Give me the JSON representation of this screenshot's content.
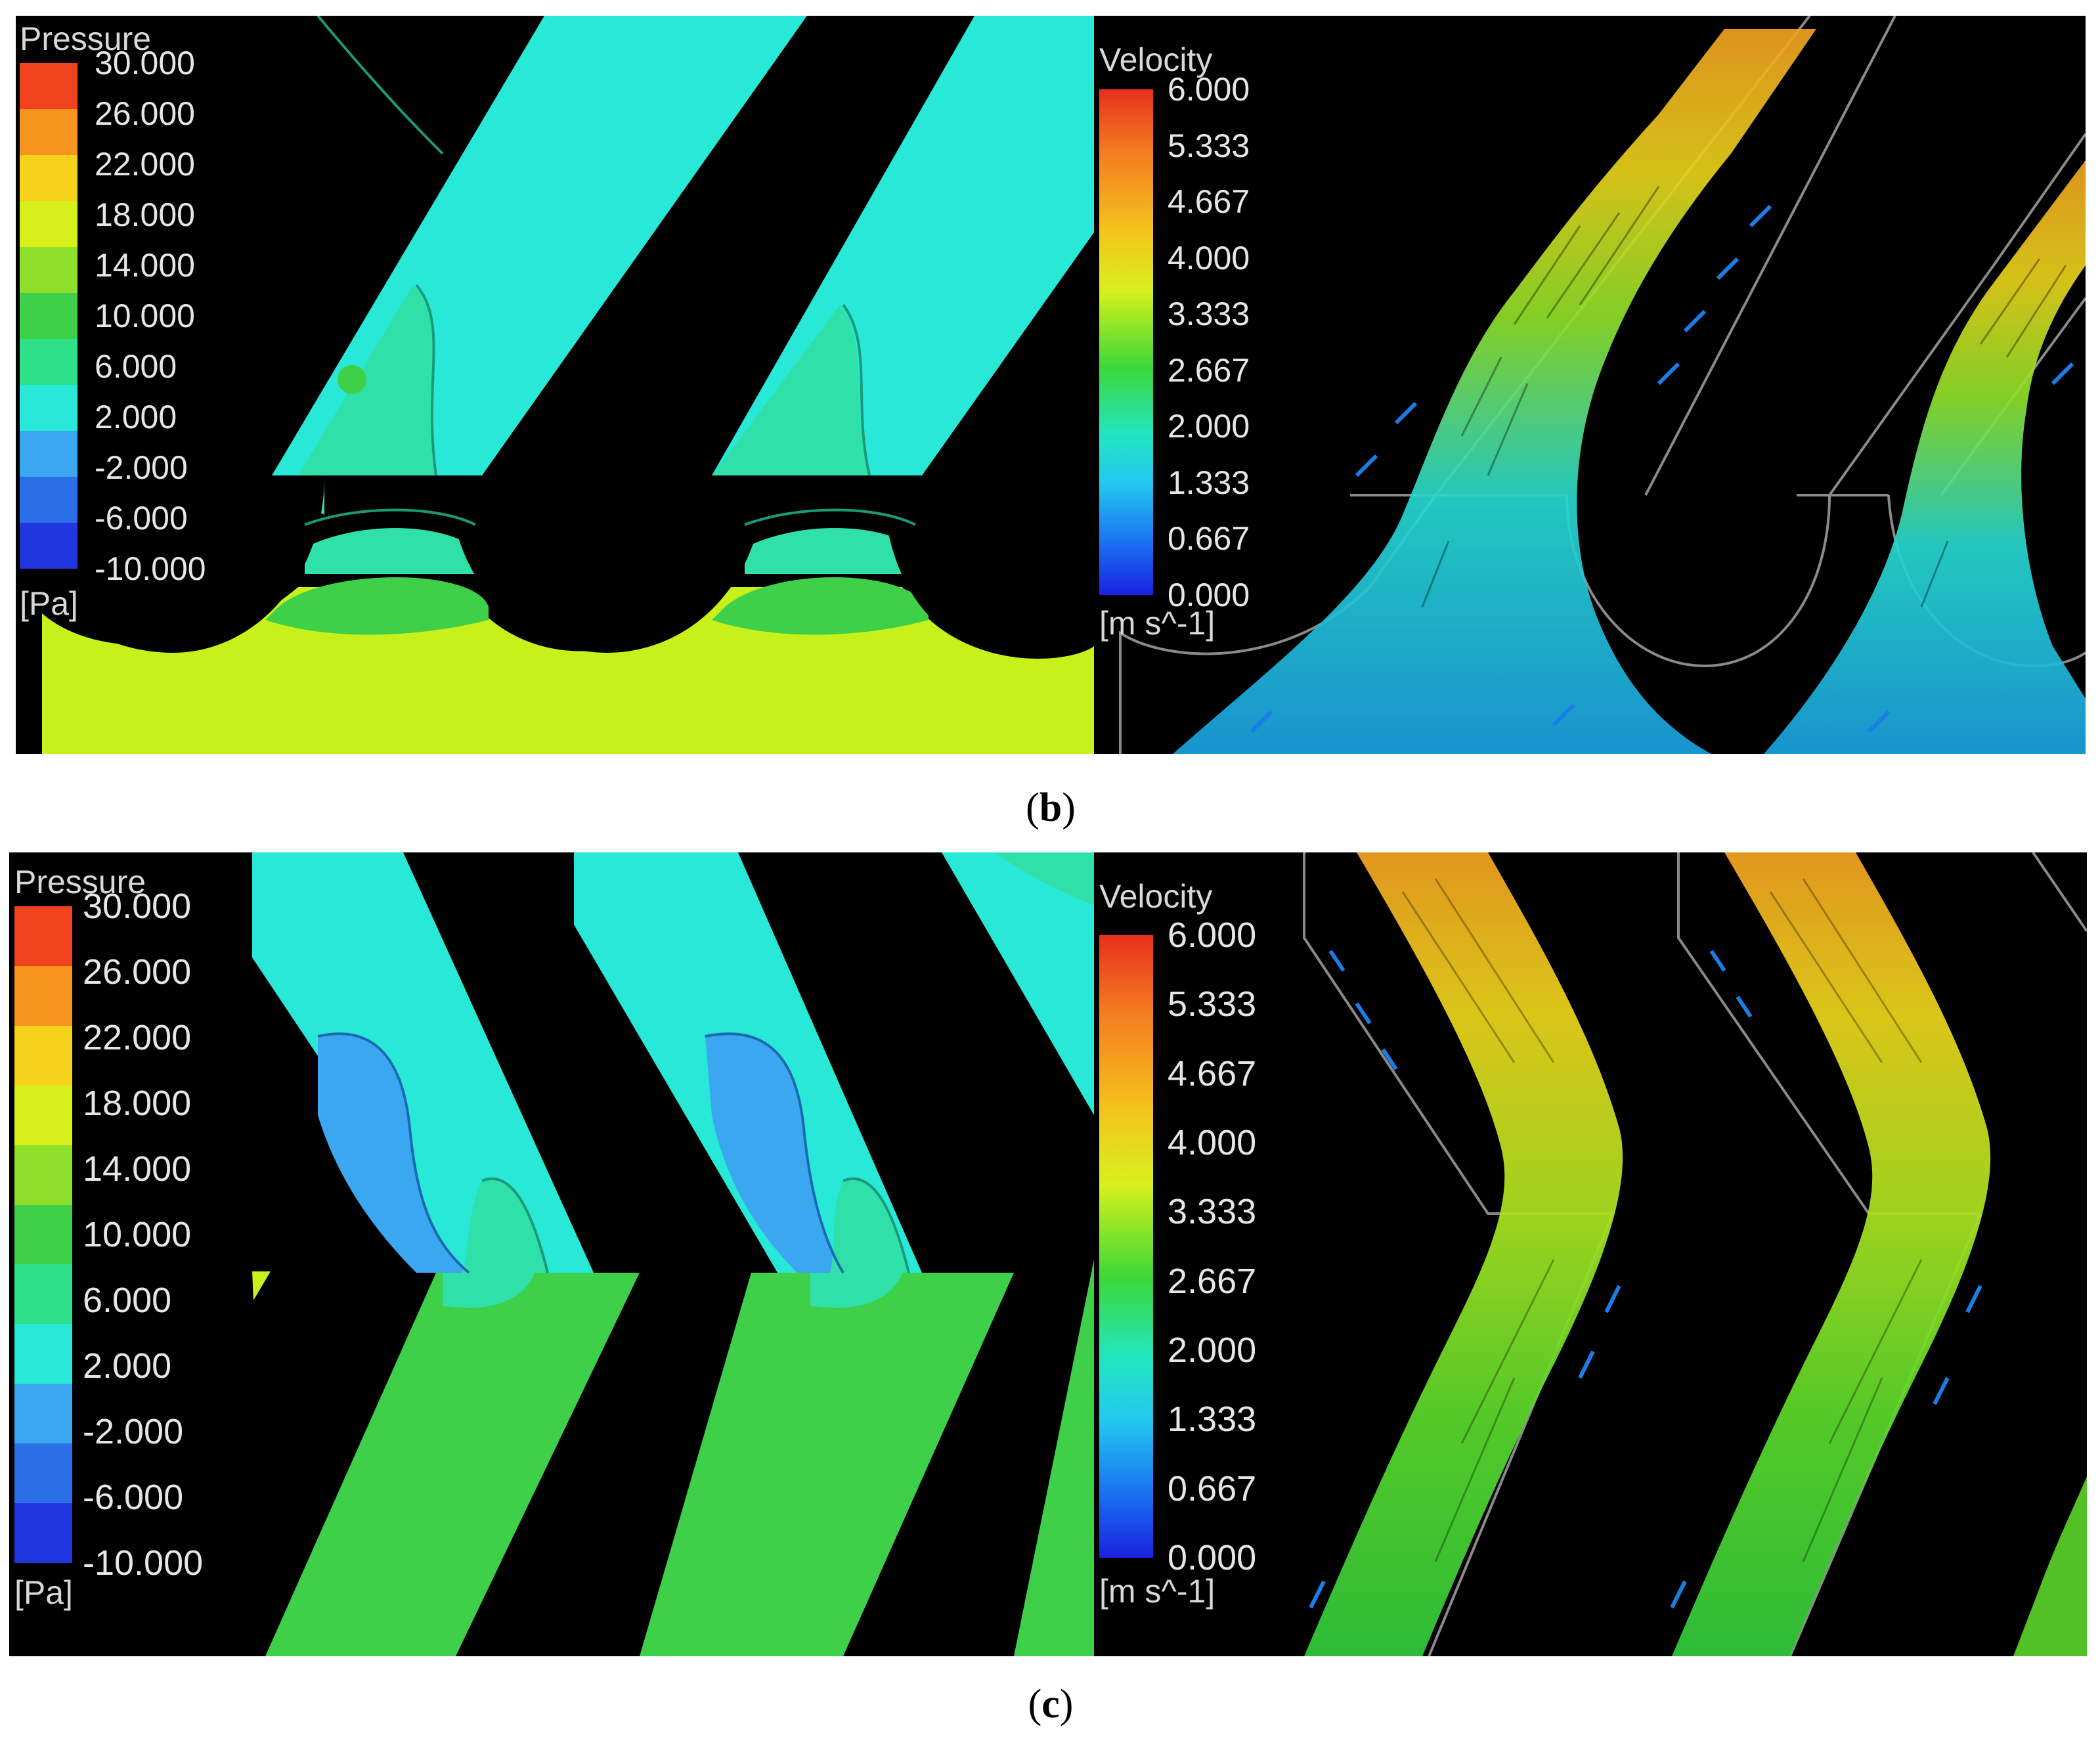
{
  "figure_b": {
    "caption_open": "(",
    "caption_letter": "b",
    "caption_close": ")",
    "pressure_legend": {
      "title": "Pressure",
      "unit": "[Pa]",
      "labels": [
        "30.000",
        "26.000",
        "22.000",
        "18.000",
        "14.000",
        "10.000",
        "6.000",
        "2.000",
        "-2.000",
        "-6.000",
        "-10.000"
      ],
      "colors": [
        "#f0421c",
        "#f7941d",
        "#f6d21a",
        "#d7f01c",
        "#8ee02a",
        "#3fd04a",
        "#2fe08a",
        "#28e8d8",
        "#3aa7f0",
        "#2a6ee8",
        "#2034e0"
      ]
    },
    "velocity_legend": {
      "title": "Velocity",
      "unit": "[m s^-1]",
      "labels": [
        "6.000",
        "5.333",
        "4.667",
        "4.000",
        "3.333",
        "2.667",
        "2.000",
        "1.333",
        "0.667",
        "0.000"
      ]
    }
  },
  "figure_c": {
    "caption_open": "(",
    "caption_letter": "c",
    "caption_close": ")",
    "pressure_legend": {
      "title": "Pressure",
      "unit": "[Pa]",
      "labels": [
        "30.000",
        "26.000",
        "22.000",
        "18.000",
        "14.000",
        "10.000",
        "6.000",
        "2.000",
        "-2.000",
        "-6.000",
        "-10.000"
      ],
      "colors": [
        "#f0421c",
        "#f7941d",
        "#f6d21a",
        "#d7f01c",
        "#8ee02a",
        "#3fd04a",
        "#2fe08a",
        "#28e8d8",
        "#3aa7f0",
        "#2a6ee8",
        "#2034e0"
      ]
    },
    "velocity_legend": {
      "title": "Velocity",
      "unit": "[m s^-1]",
      "labels": [
        "6.000",
        "5.333",
        "4.667",
        "4.000",
        "3.333",
        "2.667",
        "2.000",
        "1.333",
        "0.667",
        "0.000"
      ]
    }
  },
  "colors": {
    "pressure_high": "#c8f01a",
    "pressure_mid": "#3fd04a",
    "pressure_low": "#28e8d8",
    "pressure_neg": "#3aa7f0",
    "pressure_shoulder": "#2fe0a8",
    "background": "#000000"
  }
}
